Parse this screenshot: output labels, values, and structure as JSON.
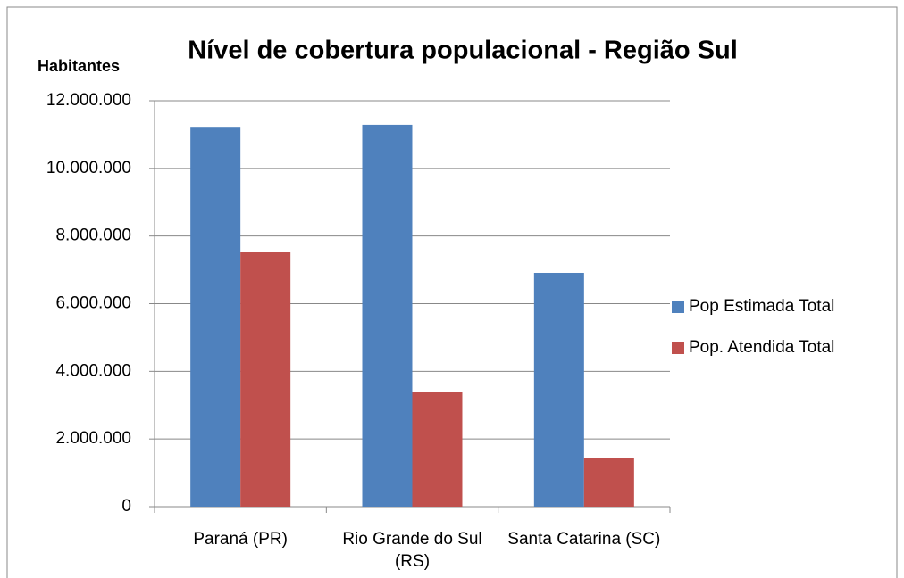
{
  "chart_data": {
    "type": "bar",
    "title": "Nível de cobertura populacional - Região Sul",
    "y_label": "Habitantes",
    "categories": [
      "Paraná (PR)",
      "Rio Grande do Sul (RS)",
      "Santa Catarina (SC)"
    ],
    "series": [
      {
        "name": "Pop Estimada Total",
        "color": "#4f81bd",
        "values": [
          11230000,
          11290000,
          6910000
        ]
      },
      {
        "name": "Pop. Atendida Total",
        "color": "#c0504d",
        "values": [
          7540000,
          3380000,
          1430000
        ]
      }
    ],
    "ylim": [
      0,
      12000000
    ],
    "yticks": [
      0,
      {
        "value": 2000000,
        "label": "2.000.000"
      },
      {
        "value": 4000000,
        "label": "4.000.000"
      },
      {
        "value": 6000000,
        "label": "6.000.000"
      },
      {
        "value": 8000000,
        "label": "8.000.000"
      },
      {
        "value": 10000000,
        "label": "10.000.000"
      },
      {
        "value": 12000000,
        "label": "12.000.000"
      }
    ],
    "grid": true,
    "legend": "right"
  }
}
